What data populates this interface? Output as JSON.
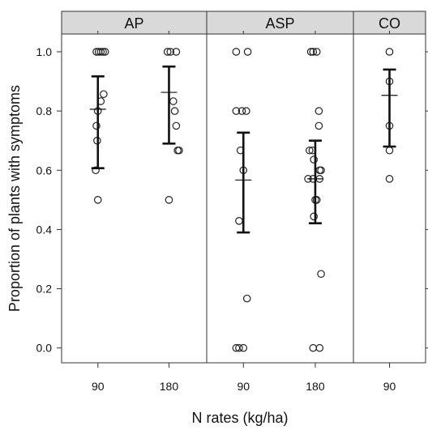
{
  "chart_data": {
    "type": "scatter",
    "xlabel": "N rates (kg/ha)",
    "ylabel": "Proportion of plants with symptoms",
    "ylim": [
      -0.05,
      1.06
    ],
    "yticks": [
      "0.0",
      "0.2",
      "0.4",
      "0.6",
      "0.8",
      "1.0"
    ],
    "grid": false,
    "panels": [
      {
        "name": "AP",
        "categories": [
          "90",
          "180"
        ],
        "groups": [
          {
            "category": "90",
            "points": [
              [
                -0.02,
                1.0
              ],
              [
                0.01,
                1.0
              ],
              [
                0.04,
                1.0
              ],
              [
                0.07,
                1.0
              ],
              [
                0.1,
                1.0
              ],
              [
                0.08,
                0.857
              ],
              [
                0.04,
                0.833
              ],
              [
                0.0,
                0.8
              ],
              [
                -0.02,
                0.75
              ],
              [
                -0.01,
                0.7
              ],
              [
                -0.03,
                0.6
              ],
              [
                0.0,
                0.5
              ]
            ],
            "mean": 0.806,
            "lower": 0.607,
            "upper": 0.917
          },
          {
            "category": "180",
            "points": [
              [
                -0.02,
                1.0
              ],
              [
                0.02,
                1.0
              ],
              [
                0.1,
                1.0
              ],
              [
                0.08,
                0.8
              ],
              [
                0.06,
                0.833
              ],
              [
                0.1,
                0.75
              ],
              [
                0.12,
                0.667
              ],
              [
                0.14,
                0.667
              ],
              [
                0.0,
                0.5
              ]
            ],
            "mean": 0.863,
            "lower": 0.69,
            "upper": 0.95
          }
        ]
      },
      {
        "name": "ASP",
        "categories": [
          "90",
          "180"
        ],
        "groups": [
          {
            "category": "90",
            "points": [
              [
                -0.1,
                1.0
              ],
              [
                0.06,
                1.0
              ],
              [
                -0.1,
                0.8
              ],
              [
                -0.02,
                0.8
              ],
              [
                0.04,
                0.8
              ],
              [
                -0.04,
                0.667
              ],
              [
                0.0,
                0.6
              ],
              [
                -0.06,
                0.429
              ],
              [
                0.05,
                0.167
              ],
              [
                -0.1,
                0.0
              ],
              [
                -0.06,
                0.0
              ],
              [
                0.0,
                0.0
              ]
            ],
            "mean": 0.567,
            "lower": 0.39,
            "upper": 0.727
          },
          {
            "category": "180",
            "points": [
              [
                -0.06,
                1.0
              ],
              [
                -0.03,
                1.0
              ],
              [
                0.02,
                1.0
              ],
              [
                0.05,
                0.8
              ],
              [
                0.05,
                0.75
              ],
              [
                -0.08,
                0.667
              ],
              [
                -0.04,
                0.667
              ],
              [
                -0.02,
                0.636
              ],
              [
                0.06,
                0.6
              ],
              [
                0.08,
                0.6
              ],
              [
                -0.1,
                0.571
              ],
              [
                -0.03,
                0.571
              ],
              [
                0.06,
                0.571
              ],
              [
                0.0,
                0.5
              ],
              [
                0.02,
                0.5
              ],
              [
                -0.02,
                0.444
              ],
              [
                0.08,
                0.25
              ],
              [
                -0.03,
                0.0
              ],
              [
                0.06,
                0.0
              ]
            ],
            "mean": 0.571,
            "lower": 0.421,
            "upper": 0.7
          }
        ]
      },
      {
        "name": "CO",
        "categories": [
          "90"
        ],
        "groups": [
          {
            "category": "90",
            "points": [
              [
                0.0,
                1.0
              ],
              [
                0.0,
                0.9
              ],
              [
                0.0,
                0.75
              ],
              [
                0.0,
                0.667
              ],
              [
                0.0,
                0.571
              ]
            ],
            "mean": 0.853,
            "lower": 0.68,
            "upper": 0.94
          }
        ]
      }
    ]
  }
}
